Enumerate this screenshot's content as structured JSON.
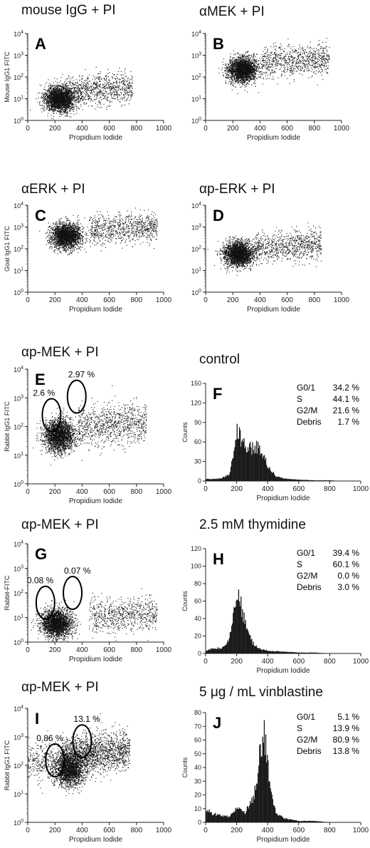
{
  "figure": {
    "panels": [
      {
        "letter": "A",
        "title": "mouse IgG + PI",
        "ylabel": "Mouse IgG1 FITC",
        "xlabel": "Propidium Iodide"
      },
      {
        "letter": "B",
        "title": "αMEK + PI",
        "ylabel": "",
        "xlabel": "Propidium Iodide"
      },
      {
        "letter": "C",
        "title": "αERK + PI",
        "ylabel": "Goat IgG1 FITC",
        "xlabel": "Propidium Iodide"
      },
      {
        "letter": "D",
        "title": "αp-ERK + PI",
        "ylabel": "",
        "xlabel": "Propidium Iodide"
      },
      {
        "letter": "E",
        "title": "αp-MEK + PI",
        "ylabel": "Rabbit IgG1 FITC",
        "xlabel": "Propidium Iodide"
      },
      {
        "letter": "F",
        "title": "control",
        "ylabel": "Counts",
        "xlabel": "Propidium Iodide"
      },
      {
        "letter": "G",
        "title": "αp-MEK + PI",
        "ylabel": "Rabbit-FITC",
        "xlabel": "Propidium Iodide"
      },
      {
        "letter": "H",
        "title": "2.5 mM thymidine",
        "ylabel": "Counts",
        "xlabel": "Propidium Iodide"
      },
      {
        "letter": "I",
        "title": "αp-MEK + PI",
        "ylabel": "Rabbit IgG1 FITC",
        "xlabel": "Propidium Iodide"
      },
      {
        "letter": "J",
        "title": "5 μg / mL vinblastine",
        "ylabel": "Counts",
        "xlabel": "Propidium Iodide"
      }
    ]
  },
  "chart_data": [
    {
      "panel": "A",
      "type": "scatter",
      "title": "mouse IgG + PI",
      "xlabel": "Propidium Iodide",
      "ylabel": "Mouse IgG1 FITC",
      "xlim": [
        0,
        1000
      ],
      "ylim_log": [
        1,
        10000
      ],
      "ylog": true,
      "xticks": [
        "0",
        "200",
        "400",
        "600",
        "800",
        "1000"
      ],
      "yticks": [
        "10^0",
        "10^1",
        "10^2",
        "10^3",
        "10^4"
      ],
      "clusters": [
        {
          "x": 230,
          "y": 10,
          "count": 2400
        },
        {
          "x": 420,
          "y": 25,
          "count": 900
        }
      ],
      "gates": []
    },
    {
      "panel": "B",
      "type": "scatter",
      "title": "αMEK + PI",
      "xlabel": "Propidium Iodide",
      "ylabel": "",
      "xlim": [
        0,
        1000
      ],
      "ylim_log": [
        1,
        10000
      ],
      "ylog": true,
      "xticks": [
        "0",
        "200",
        "400",
        "600",
        "800",
        "1000"
      ],
      "yticks": [
        "10^0",
        "10^1",
        "10^2",
        "10^3",
        "10^4"
      ],
      "clusters": [
        {
          "x": 270,
          "y": 220,
          "count": 2400
        },
        {
          "x": 560,
          "y": 500,
          "count": 800
        }
      ],
      "gates": []
    },
    {
      "panel": "C",
      "type": "scatter",
      "title": "αERK + PI",
      "xlabel": "Propidium Iodide",
      "ylabel": "Goat IgG1 FITC",
      "xlim": [
        0,
        1000
      ],
      "ylim_log": [
        1,
        10000
      ],
      "ylog": true,
      "xticks": [
        "0",
        "200",
        "400",
        "600",
        "800",
        "1000"
      ],
      "yticks": [
        "10^0",
        "10^1",
        "10^2",
        "10^3",
        "10^4"
      ],
      "clusters": [
        {
          "x": 280,
          "y": 400,
          "count": 2400
        },
        {
          "x": 600,
          "y": 800,
          "count": 800
        }
      ],
      "gates": []
    },
    {
      "panel": "D",
      "type": "scatter",
      "title": "αp-ERK + PI",
      "xlabel": "Propidium Iodide",
      "ylabel": "",
      "xlim": [
        0,
        1000
      ],
      "ylim_log": [
        1,
        10000
      ],
      "ylog": true,
      "xticks": [
        "0",
        "200",
        "400",
        "600",
        "800",
        "1000"
      ],
      "yticks": [
        "10^0",
        "10^1",
        "10^2",
        "10^3",
        "10^4"
      ],
      "clusters": [
        {
          "x": 240,
          "y": 60,
          "count": 2400
        },
        {
          "x": 500,
          "y": 120,
          "count": 800
        }
      ],
      "gates": []
    },
    {
      "panel": "E",
      "type": "scatter",
      "title": "αp-MEK + PI",
      "xlabel": "Propidium Iodide",
      "ylabel": "Rabbit IgG1 FITC",
      "xlim": [
        0,
        1000
      ],
      "ylim_log": [
        1,
        10000
      ],
      "ylog": true,
      "xticks": [
        "0",
        "200",
        "400",
        "600",
        "800",
        "1000"
      ],
      "yticks": [
        "10^0",
        "10^1",
        "10^2",
        "10^3",
        "10^4"
      ],
      "clusters": [
        {
          "x": 230,
          "y": 50,
          "count": 2400
        },
        {
          "x": 520,
          "y": 110,
          "count": 900
        }
      ],
      "gates": [
        {
          "label": "2.6 %",
          "x": 175,
          "y": 250
        },
        {
          "label": "2.97 %",
          "x": 360,
          "y": 1100
        }
      ]
    },
    {
      "panel": "F",
      "type": "bar",
      "title": "control",
      "xlabel": "Propidium Iodide",
      "ylabel": "Counts",
      "xlim": [
        0,
        1000
      ],
      "ylim": [
        0,
        150
      ],
      "xticks": [
        "0",
        "200",
        "400",
        "600",
        "800",
        "1000"
      ],
      "yticks": [
        "0",
        "30",
        "60",
        "90",
        "120",
        "150"
      ],
      "x": [
        0,
        50,
        100,
        150,
        175,
        200,
        225,
        250,
        275,
        300,
        325,
        350,
        375,
        400,
        450,
        500,
        600,
        700,
        800,
        900,
        1000
      ],
      "values": [
        3,
        3,
        4,
        10,
        42,
        76,
        65,
        55,
        52,
        50,
        53,
        48,
        38,
        22,
        8,
        4,
        2,
        1,
        1,
        0,
        0
      ],
      "stats": [
        {
          "label": "G0/1",
          "value": "34.2 %"
        },
        {
          "label": "S",
          "value": "44.1 %"
        },
        {
          "label": "G2/M",
          "value": "21.6 %"
        },
        {
          "label": "Debris",
          "value": "1.7 %"
        }
      ]
    },
    {
      "panel": "G",
      "type": "scatter",
      "title": "αp-MEK + PI",
      "xlabel": "Propidium Iodide",
      "ylabel": "Rabbit-FITC",
      "xlim": [
        0,
        1000
      ],
      "ylim_log": [
        1,
        10000
      ],
      "ylog": true,
      "xticks": [
        "0",
        "200",
        "400",
        "600",
        "800",
        "1000"
      ],
      "yticks": [
        "10^0",
        "10^1",
        "10^2",
        "10^3",
        "10^4"
      ],
      "clusters": [
        {
          "x": 210,
          "y": 6,
          "count": 2400
        },
        {
          "x": 600,
          "y": 12,
          "count": 700
        }
      ],
      "gates": [
        {
          "label": "0.08 %",
          "x": 130,
          "y": 40
        },
        {
          "label": "0.07 %",
          "x": 330,
          "y": 100
        }
      ]
    },
    {
      "panel": "H",
      "type": "bar",
      "title": "2.5 mM thymidine",
      "xlabel": "Propidium Iodide",
      "ylabel": "Counts",
      "xlim": [
        0,
        1000
      ],
      "ylim": [
        0,
        120
      ],
      "xticks": [
        "0",
        "200",
        "400",
        "600",
        "800",
        "1000"
      ],
      "yticks": [
        "0",
        "20",
        "40",
        "60",
        "80",
        "100",
        "120"
      ],
      "x": [
        0,
        50,
        100,
        150,
        175,
        200,
        225,
        250,
        275,
        300,
        350,
        400,
        500,
        600,
        700,
        800,
        900,
        1000
      ],
      "values": [
        3,
        6,
        6,
        15,
        50,
        67,
        55,
        38,
        22,
        12,
        5,
        3,
        2,
        1,
        1,
        0,
        0,
        0
      ],
      "stats": [
        {
          "label": "G0/1",
          "value": "39.4 %"
        },
        {
          "label": "S",
          "value": "60.1 %"
        },
        {
          "label": "G2/M",
          "value": "0.0 %"
        },
        {
          "label": "Debris",
          "value": "3.0 %"
        }
      ]
    },
    {
      "panel": "I",
      "type": "scatter",
      "title": "αp-MEK + PI",
      "xlabel": "Propidium Iodide",
      "ylabel": "Rabbit IgG1 FITC",
      "xlim": [
        0,
        1000
      ],
      "ylim_log": [
        1,
        10000
      ],
      "ylog": true,
      "xticks": [
        "0",
        "200",
        "400",
        "600",
        "800",
        "1000"
      ],
      "yticks": [
        "10^0",
        "10^1",
        "10^2",
        "10^3",
        "10^4"
      ],
      "clusters": [
        {
          "x": 300,
          "y": 70,
          "count": 1800
        },
        {
          "x": 400,
          "y": 250,
          "count": 1500
        },
        {
          "x": 150,
          "y": 150,
          "count": 700
        }
      ],
      "gates": [
        {
          "label": "0.86 %",
          "x": 200,
          "y": 150
        },
        {
          "label": "13.1 %",
          "x": 400,
          "y": 700
        }
      ]
    },
    {
      "panel": "J",
      "type": "bar",
      "title": "5 μg / mL vinblastine",
      "xlabel": "Propidium Iodide",
      "ylabel": "Counts",
      "xlim": [
        0,
        1000
      ],
      "ylim": [
        0,
        80
      ],
      "xticks": [
        "0",
        "200",
        "400",
        "600",
        "800",
        "1000"
      ],
      "yticks": [
        "0",
        "10",
        "20",
        "30",
        "40",
        "50",
        "60",
        "70",
        "80"
      ],
      "x": [
        0,
        50,
        100,
        150,
        200,
        250,
        300,
        325,
        350,
        375,
        400,
        425,
        450,
        500,
        600,
        700,
        800,
        900,
        1000
      ],
      "values": [
        9,
        6,
        5,
        4,
        10,
        7,
        16,
        28,
        52,
        66,
        40,
        18,
        7,
        3,
        1,
        1,
        0,
        0,
        0
      ],
      "stats": [
        {
          "label": "G0/1",
          "value": "5.1 %"
        },
        {
          "label": "S",
          "value": "13.9 %"
        },
        {
          "label": "G2/M",
          "value": "80.9 %"
        },
        {
          "label": "Debris",
          "value": "13.8 %"
        }
      ]
    }
  ]
}
